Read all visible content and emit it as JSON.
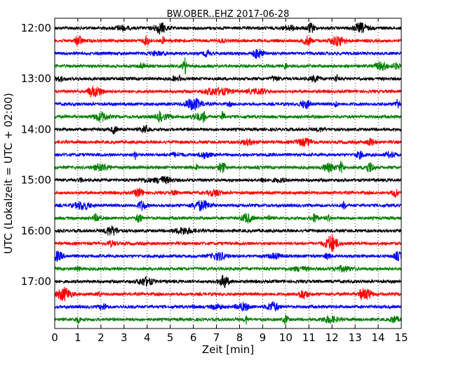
{
  "chart_data": {
    "type": "line",
    "title": "BW.OBER..EHZ 2017-06-28",
    "xlabel": "Zeit  [min]",
    "ylabel": "UTC (Lokalzeit = UTC + 02:00)",
    "xlim": [
      0,
      15
    ],
    "x_ticks": [
      0,
      1,
      2,
      3,
      4,
      5,
      6,
      7,
      8,
      9,
      10,
      11,
      12,
      13,
      14,
      15
    ],
    "x_tick_labels": [
      "0",
      "1",
      "2",
      "3",
      "4",
      "5",
      "6",
      "7",
      "8",
      "9",
      "10",
      "11",
      "12",
      "13",
      "14",
      "15"
    ],
    "y_tick_labels": [
      "12:00",
      "13:00",
      "14:00",
      "15:00",
      "16:00",
      "17:00"
    ],
    "grid": "vertical dotted",
    "trace_colors": [
      "#000000",
      "#ff0000",
      "#0000ff",
      "#008000"
    ],
    "series": [
      {
        "start": "12:00",
        "color": "#000000"
      },
      {
        "start": "12:15",
        "color": "#ff0000"
      },
      {
        "start": "12:30",
        "color": "#0000ff"
      },
      {
        "start": "12:45",
        "color": "#008000"
      },
      {
        "start": "13:00",
        "color": "#000000"
      },
      {
        "start": "13:15",
        "color": "#ff0000"
      },
      {
        "start": "13:30",
        "color": "#0000ff"
      },
      {
        "start": "13:45",
        "color": "#008000"
      },
      {
        "start": "14:00",
        "color": "#000000"
      },
      {
        "start": "14:15",
        "color": "#ff0000"
      },
      {
        "start": "14:30",
        "color": "#0000ff"
      },
      {
        "start": "14:45",
        "color": "#008000"
      },
      {
        "start": "15:00",
        "color": "#000000"
      },
      {
        "start": "15:15",
        "color": "#ff0000"
      },
      {
        "start": "15:30",
        "color": "#0000ff"
      },
      {
        "start": "15:45",
        "color": "#008000"
      },
      {
        "start": "16:00",
        "color": "#000000"
      },
      {
        "start": "16:15",
        "color": "#ff0000"
      },
      {
        "start": "16:30",
        "color": "#0000ff"
      },
      {
        "start": "16:45",
        "color": "#008000"
      },
      {
        "start": "17:00",
        "color": "#000000"
      },
      {
        "start": "17:15",
        "color": "#ff0000"
      },
      {
        "start": "17:30",
        "color": "#0000ff"
      },
      {
        "start": "17:45",
        "color": "#008000"
      }
    ]
  }
}
